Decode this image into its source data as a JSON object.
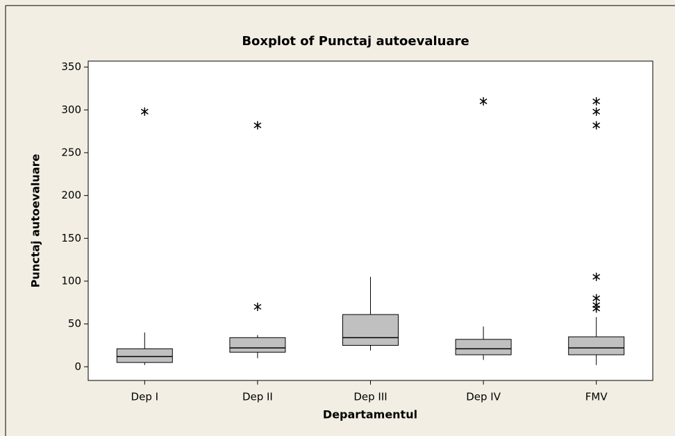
{
  "chart_data": {
    "type": "box",
    "title": "Boxplot of Punctaj autoevaluare",
    "x_label": "Departamentul",
    "y_label": "Punctaj autoevaluare",
    "categories": [
      "Dep I",
      "Dep II",
      "Dep III",
      "Dep IV",
      "FMV"
    ],
    "boxes": [
      {
        "low": 2,
        "q1": 5,
        "median": 12,
        "q3": 21,
        "high": 40,
        "outliers": [
          298
        ]
      },
      {
        "low": 10,
        "q1": 17,
        "median": 22,
        "q3": 34,
        "high": 37,
        "outliers": [
          70,
          282
        ]
      },
      {
        "low": 19,
        "q1": 25,
        "median": 34,
        "q3": 61,
        "high": 105,
        "outliers": []
      },
      {
        "low": 8,
        "q1": 14,
        "median": 21,
        "q3": 32,
        "high": 47,
        "outliers": [
          310
        ]
      },
      {
        "low": 2,
        "q1": 14,
        "median": 22,
        "q3": 35,
        "high": 58,
        "outliers": [
          68,
          72,
          80,
          105,
          282,
          298,
          310
        ]
      }
    ],
    "color": "#c0c0c0",
    "ylim": [
      -16,
      357
    ],
    "yticks": [
      0,
      50,
      100,
      150,
      200,
      250,
      300,
      350
    ]
  }
}
